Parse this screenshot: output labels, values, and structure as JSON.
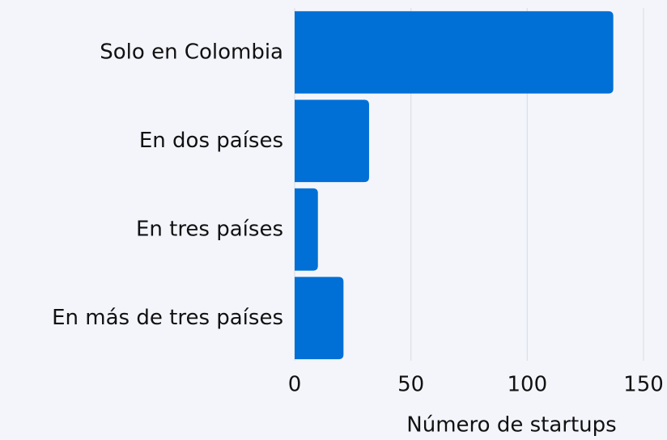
{
  "chart_data": {
    "type": "bar",
    "orientation": "horizontal",
    "categories": [
      "Solo en Colombia",
      "En dos países",
      "En tres países",
      "En más de tres países"
    ],
    "values": [
      137,
      32,
      10,
      21
    ],
    "color": "#006fd6",
    "xlabel": "Número de startups",
    "xlim": [
      0,
      150
    ],
    "xticks": [
      0,
      50,
      100,
      150
    ],
    "grid": true
  }
}
